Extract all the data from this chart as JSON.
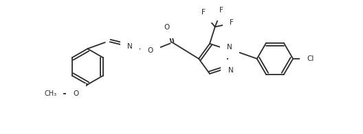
{
  "figsize": [
    5.28,
    1.96
  ],
  "dpi": 100,
  "bg_color": "#ffffff",
  "line_color": "#2a2a2a",
  "linewidth": 1.3,
  "font_size": 7.5,
  "xlim": [
    0,
    528
  ],
  "ylim": [
    0,
    196
  ]
}
